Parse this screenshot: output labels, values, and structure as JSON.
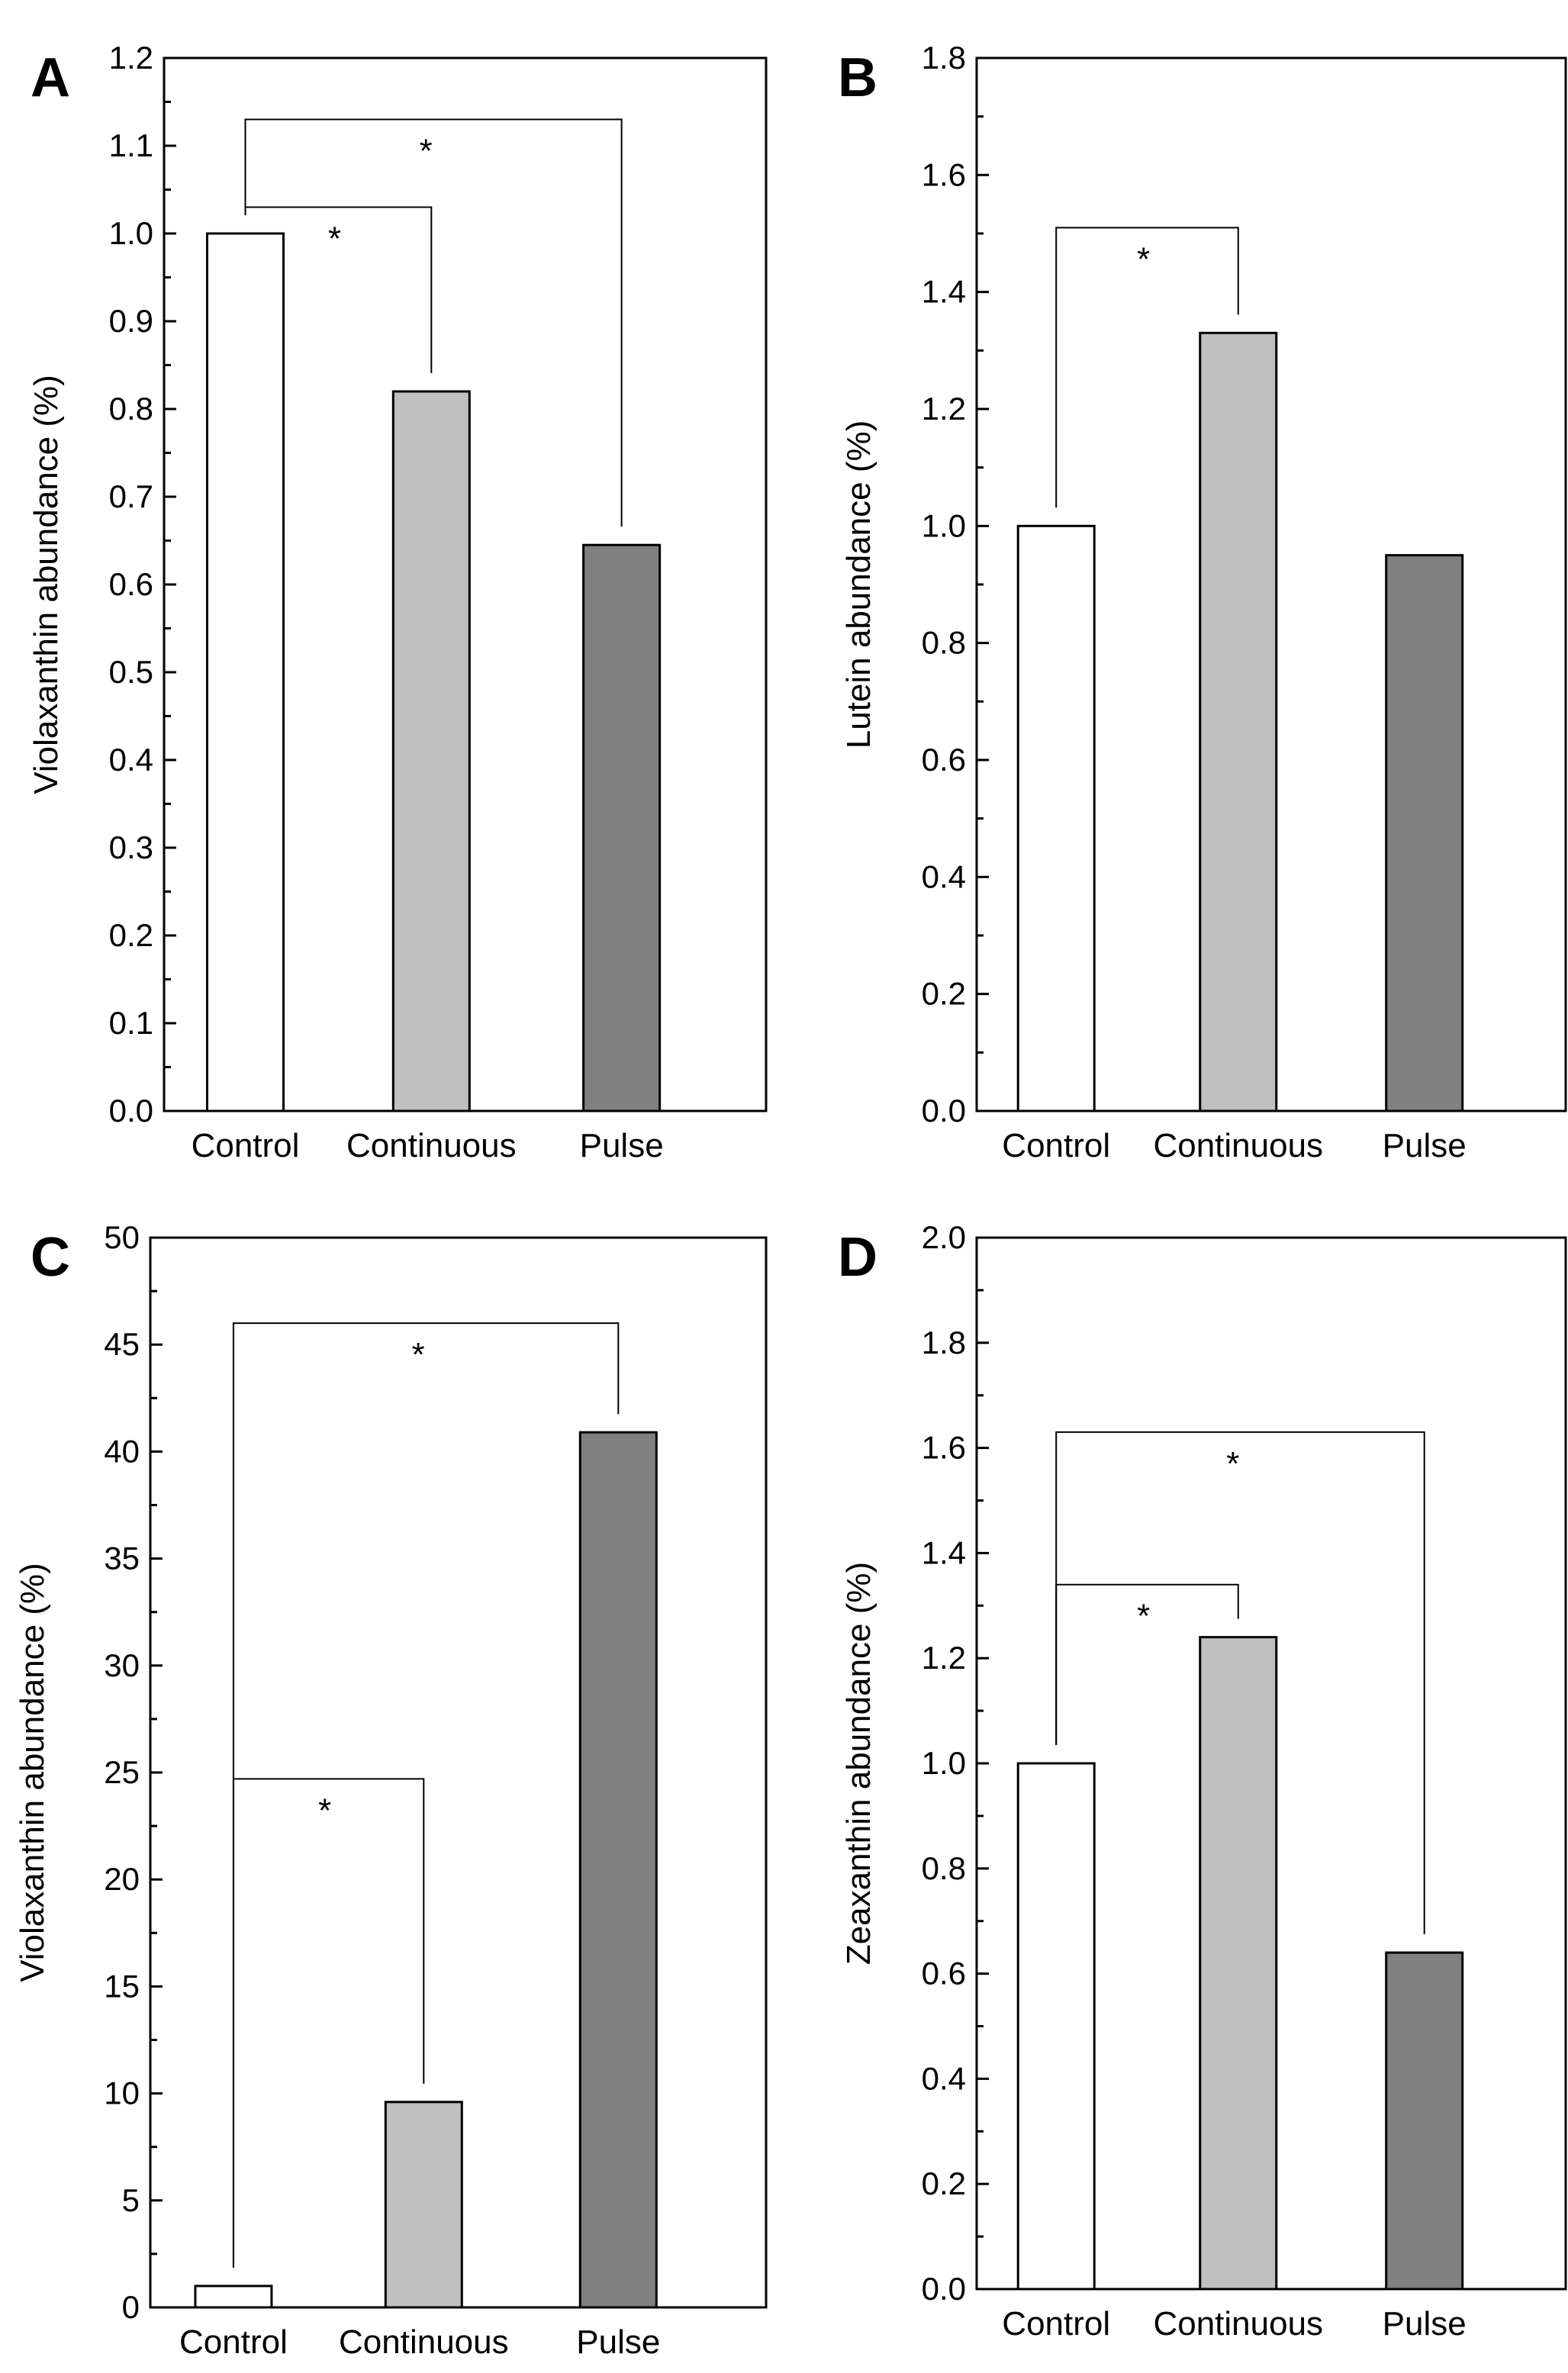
{
  "chart_data": [
    {
      "panel": "A",
      "type": "bar",
      "categories": [
        "Control",
        "Continuous",
        "Pulse"
      ],
      "values": [
        1.0,
        0.82,
        0.645
      ],
      "colors": [
        "#ffffff",
        "#c0c0c0",
        "#808080"
      ],
      "ylabel": "Violaxanthin abundance (%)",
      "ylim": [
        0,
        1.2
      ],
      "yticks": [
        "0.0",
        "0.1",
        "0.2",
        "0.3",
        "0.4",
        "0.5",
        "0.6",
        "0.7",
        "0.8",
        "0.9",
        "1.0",
        "1.1",
        "1.2"
      ],
      "significance": [
        {
          "from": "Control",
          "to": "Continuous",
          "level": 1.03,
          "label": "*"
        },
        {
          "from": "Control",
          "to": "Pulse",
          "level": 1.13,
          "label": "*"
        }
      ]
    },
    {
      "panel": "B",
      "type": "bar",
      "categories": [
        "Control",
        "Continuous",
        "Pulse"
      ],
      "values": [
        1.0,
        1.33,
        0.95
      ],
      "colors": [
        "#ffffff",
        "#c0c0c0",
        "#808080"
      ],
      "ylabel": "Lutein abundance (%)",
      "ylim": [
        0,
        1.8
      ],
      "yticks": [
        "0.0",
        "0.2",
        "0.4",
        "0.6",
        "0.8",
        "1.0",
        "1.2",
        "1.4",
        "1.6",
        "1.8"
      ],
      "significance": [
        {
          "from": "Control",
          "to": "Continuous",
          "level": 1.51,
          "label": "*"
        }
      ]
    },
    {
      "panel": "C",
      "type": "bar",
      "categories": [
        "Control",
        "Continuous",
        "Pulse"
      ],
      "values": [
        1.0,
        9.6,
        40.9
      ],
      "colors": [
        "#ffffff",
        "#c0c0c0",
        "#808080"
      ],
      "ylabel": "Violaxanthin abundance (%)",
      "ylim": [
        0,
        50
      ],
      "yticks": [
        "0",
        "5",
        "10",
        "15",
        "20",
        "25",
        "30",
        "35",
        "40",
        "45",
        "50"
      ],
      "significance": [
        {
          "from": "Control",
          "to": "Continuous",
          "level": 24.7,
          "label": "*"
        },
        {
          "from": "Control",
          "to": "Pulse",
          "level": 46.0,
          "label": "*"
        }
      ]
    },
    {
      "panel": "D",
      "type": "bar",
      "categories": [
        "Control",
        "Continuous",
        "Pulse"
      ],
      "values": [
        1.0,
        1.24,
        0.64
      ],
      "colors": [
        "#ffffff",
        "#c0c0c0",
        "#808080"
      ],
      "ylabel": "Zeaxanthin abundance (%)",
      "ylim": [
        0,
        2.0
      ],
      "yticks": [
        "0.0",
        "0.2",
        "0.4",
        "0.6",
        "0.8",
        "1.0",
        "1.2",
        "1.4",
        "1.6",
        "1.8",
        "2.0"
      ],
      "significance": [
        {
          "from": "Control",
          "to": "Continuous",
          "level": 1.34,
          "label": "*"
        },
        {
          "from": "Control",
          "to": "Pulse",
          "level": 1.63,
          "label": "*"
        }
      ]
    }
  ]
}
